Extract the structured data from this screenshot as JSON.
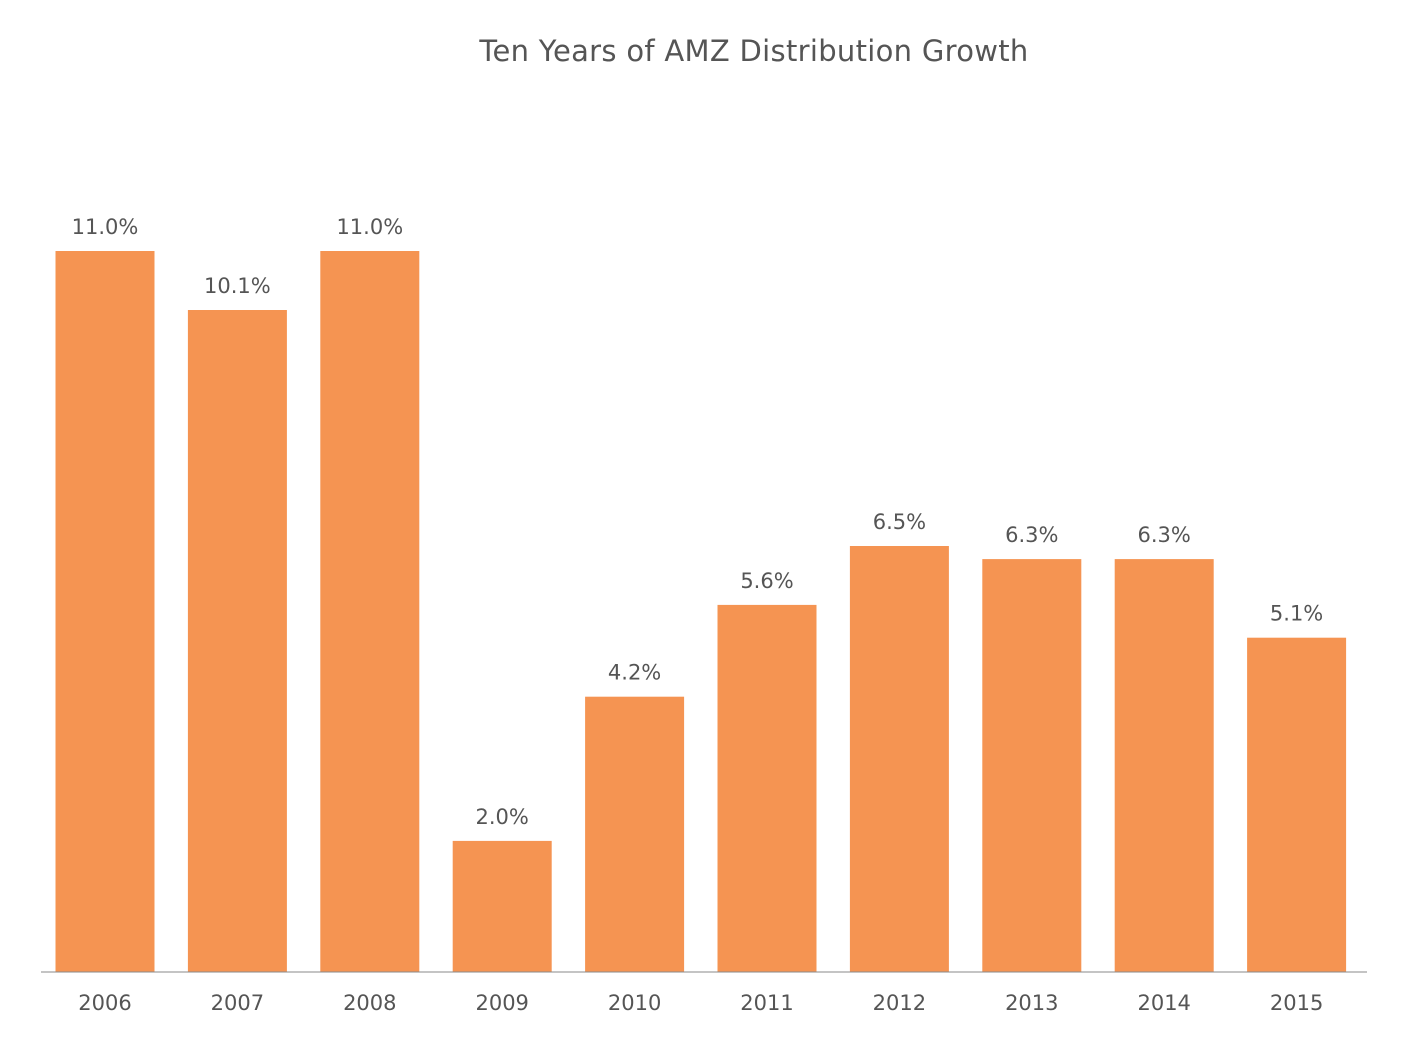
{
  "chart_data": {
    "type": "bar",
    "title": "Ten Years of AMZ Distribution Growth",
    "xlabel": "",
    "ylabel": "",
    "categories": [
      "2006",
      "2007",
      "2008",
      "2009",
      "2010",
      "2011",
      "2012",
      "2013",
      "2014",
      "2015"
    ],
    "values": [
      11.0,
      10.1,
      11.0,
      2.0,
      4.2,
      5.6,
      6.5,
      6.3,
      6.3,
      5.1
    ],
    "data_labels": [
      "11.0%",
      "10.1%",
      "11.0%",
      "2.0%",
      "4.2%",
      "5.6%",
      "6.5%",
      "6.3%",
      "6.3%",
      "5.1%"
    ],
    "ylim": [
      0,
      11.0
    ],
    "grid": false,
    "legend": "none",
    "bar_color": "#f59452",
    "axis_color": "#8a8a8a"
  }
}
